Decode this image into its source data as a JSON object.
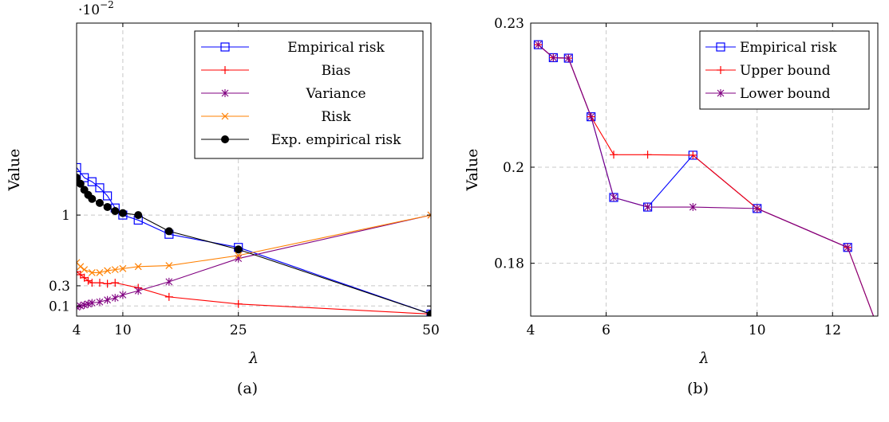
{
  "chart_data": [
    {
      "type": "line",
      "caption": "(a)",
      "exponent_label": "·10",
      "exponent_power": "−2",
      "xlabel": "λ",
      "ylabel": "Value",
      "xlim": [
        4,
        50
      ],
      "ylim": [
        0.0,
        2.9
      ],
      "xticks": [
        4,
        10,
        25,
        50
      ],
      "yticks": [
        0.1,
        0.3,
        1
      ],
      "xtick_labels": [
        "4",
        "10",
        "25",
        "50"
      ],
      "ytick_labels": [
        "0.1",
        "0.3",
        "1"
      ],
      "grid": true,
      "legend_position": "top-right",
      "series": [
        {
          "name": "Empirical risk",
          "color": "#0000ff",
          "marker": "square",
          "x": [
            4,
            5,
            6,
            7,
            8,
            9,
            10,
            12,
            16,
            25,
            50
          ],
          "y": [
            1.47,
            1.37,
            1.33,
            1.27,
            1.19,
            1.07,
            1.0,
            0.95,
            0.81,
            0.68,
            0.02
          ]
        },
        {
          "name": "Bias",
          "color": "#ff0000",
          "marker": "plus",
          "x": [
            4,
            4.5,
            5,
            5.5,
            6,
            7,
            8,
            9,
            12,
            16,
            25,
            50
          ],
          "y": [
            0.44,
            0.41,
            0.38,
            0.35,
            0.33,
            0.33,
            0.32,
            0.33,
            0.28,
            0.19,
            0.12,
            0.02
          ]
        },
        {
          "name": "Variance",
          "color": "#800080",
          "marker": "star",
          "x": [
            4,
            4.5,
            5,
            5.5,
            6,
            7,
            8,
            9,
            10,
            12,
            16,
            25,
            50
          ],
          "y": [
            0.09,
            0.1,
            0.11,
            0.12,
            0.13,
            0.14,
            0.16,
            0.18,
            0.21,
            0.25,
            0.34,
            0.57,
            1.0
          ]
        },
        {
          "name": "Risk",
          "color": "#ff8000",
          "marker": "x",
          "x": [
            4,
            4.5,
            5,
            6,
            7,
            8,
            9,
            10,
            12,
            16,
            25,
            50
          ],
          "y": [
            0.53,
            0.49,
            0.46,
            0.43,
            0.43,
            0.45,
            0.46,
            0.47,
            0.49,
            0.5,
            0.6,
            1.0
          ]
        },
        {
          "name": "Exp. empirical risk",
          "color": "#000000",
          "marker": "circle",
          "x": [
            4,
            4.5,
            5,
            5.5,
            6,
            7,
            8,
            9,
            10,
            12,
            16,
            25,
            50
          ],
          "y": [
            1.37,
            1.31,
            1.25,
            1.2,
            1.16,
            1.12,
            1.08,
            1.04,
            1.02,
            1.0,
            0.84,
            0.66,
            0.02
          ]
        }
      ]
    },
    {
      "type": "line",
      "caption": "(b)",
      "xlabel": "λ",
      "ylabel": "Value",
      "xlim": [
        4,
        13.2
      ],
      "ylim": [
        0.169,
        0.23
      ],
      "xticks": [
        4,
        6,
        10,
        12
      ],
      "yticks": [
        0.18,
        0.2,
        0.23
      ],
      "xtick_labels": [
        "4",
        "6",
        "10",
        "12"
      ],
      "ytick_labels": [
        "0.18",
        "0.2",
        "0.23"
      ],
      "grid": true,
      "legend_position": "top-right",
      "series": [
        {
          "name": "Empirical risk",
          "color": "#0000ff",
          "marker": "square",
          "x": [
            4.2,
            4.6,
            5.0,
            5.6,
            6.2,
            7.1,
            8.3,
            10.0,
            12.4
          ],
          "y": [
            0.2255,
            0.2228,
            0.2227,
            0.2105,
            0.1937,
            0.1917,
            0.2025,
            0.1914,
            0.1833
          ]
        },
        {
          "name": "Upper bound",
          "color": "#ff0000",
          "marker": "plus",
          "x": [
            4.2,
            4.6,
            5.0,
            5.6,
            6.2,
            7.1,
            8.3,
            10.0,
            12.4,
            13.2
          ],
          "y": [
            0.2255,
            0.2228,
            0.2227,
            0.2105,
            0.2026,
            0.2026,
            0.2025,
            0.1914,
            0.1833,
            0.1666
          ]
        },
        {
          "name": "Lower bound",
          "color": "#800080",
          "marker": "star",
          "x": [
            4.2,
            4.6,
            5.0,
            5.6,
            6.2,
            7.1,
            8.3,
            10.0,
            12.4,
            13.2
          ],
          "y": [
            0.2255,
            0.2228,
            0.2227,
            0.2105,
            0.1937,
            0.1917,
            0.1917,
            0.1914,
            0.1833,
            0.1666
          ]
        }
      ]
    }
  ]
}
